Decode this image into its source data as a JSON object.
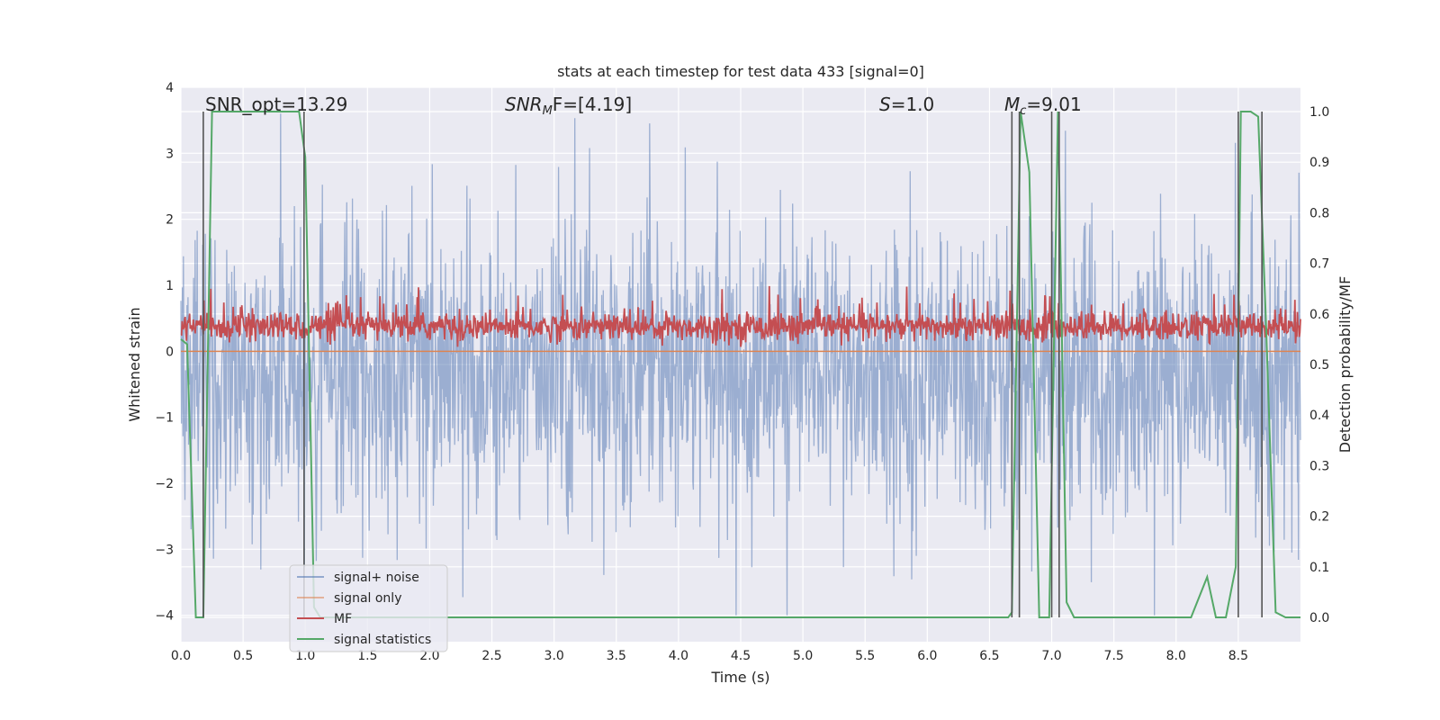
{
  "chart_data": {
    "type": "line",
    "title": "stats at each timestep for test data 433 [signal=0]",
    "xlabel": "Time (s)",
    "ylabel_left": "Whitened strain",
    "ylabel_right": "Detection probability/MF",
    "xlim": [
      0.0,
      9.0
    ],
    "ylim_left": [
      -4.4,
      4.0
    ],
    "ylim_right": [
      -0.048,
      1.048
    ],
    "x_ticks": [
      "0.0",
      "0.5",
      "1.0",
      "1.5",
      "2.0",
      "2.5",
      "3.0",
      "3.5",
      "4.0",
      "4.5",
      "5.0",
      "5.5",
      "6.0",
      "6.5",
      "7.0",
      "7.5",
      "8.0",
      "8.5"
    ],
    "y_left_ticks": [
      "4",
      "3",
      "2",
      "1",
      "0",
      "−1",
      "−2",
      "−3",
      "−4"
    ],
    "y_right_ticks": [
      "1.0",
      "0.9",
      "0.8",
      "0.7",
      "0.6",
      "0.5",
      "0.4",
      "0.3",
      "0.2",
      "0.1",
      "0.0"
    ],
    "grid": true,
    "annotations": {
      "snr_opt": "SNR_opt=13.29",
      "snr_mf_label": "SNR",
      "snr_mf_sub": "M",
      "snr_mf_rest": "F=[4.19]",
      "s_label": "S",
      "s_value": "=1.0",
      "mc_label": "M",
      "mc_sub": "c",
      "mc_value": "=9.01"
    },
    "series": [
      {
        "name": "signal+ noise",
        "color": "#4c72b0",
        "axis": "left",
        "description": "whitened strain noise, roughly within -2.5..3.5 with spikes; centered near -0.4",
        "approx_range": [
          -4.0,
          3.6
        ]
      },
      {
        "name": "signal only",
        "color": "#dd8452",
        "axis": "left",
        "values_constant": 0
      },
      {
        "name": "MF",
        "color": "#c44e52",
        "axis": "right",
        "description": "matched-filter output fluctuating between ~0.54 and ~0.65",
        "approx_range": [
          0.535,
          0.655
        ]
      },
      {
        "name": "signal statistics",
        "color": "#55a868",
        "axis": "right",
        "x": [
          0.0,
          0.05,
          0.12,
          0.18,
          0.25,
          0.3,
          0.5,
          0.7,
          0.95,
          1.0,
          1.07,
          1.12,
          1.2,
          1.4,
          2.0,
          3.0,
          4.0,
          5.0,
          6.0,
          6.4,
          6.65,
          6.68,
          6.75,
          6.82,
          6.9,
          6.98,
          7.05,
          7.12,
          7.18,
          7.5,
          8.0,
          8.12,
          8.25,
          8.32,
          8.4,
          8.48,
          8.52,
          8.6,
          8.66,
          8.72,
          8.8,
          8.88,
          8.95,
          9.0
        ],
        "y": [
          0.55,
          0.54,
          0.0,
          0.0,
          1.0,
          1.0,
          1.0,
          1.0,
          1.0,
          0.91,
          0.02,
          0.0,
          0.0,
          0.0,
          0.0,
          0.0,
          0.0,
          0.0,
          0.0,
          0.0,
          0.0,
          0.01,
          1.0,
          0.88,
          0.0,
          0.0,
          1.0,
          0.03,
          0.0,
          0.0,
          0.0,
          0.0,
          0.08,
          0.0,
          0.0,
          0.1,
          1.0,
          1.0,
          0.99,
          0.6,
          0.01,
          0.0,
          0.0,
          0.0
        ]
      }
    ],
    "vlines": [
      0.18,
      0.99,
      6.68,
      6.74,
      7.0,
      7.06,
      8.5,
      8.69
    ],
    "legend": {
      "placement": "lower-left",
      "entries": [
        "signal+ noise",
        "signal only",
        "MF",
        "signal statistics"
      ]
    }
  }
}
